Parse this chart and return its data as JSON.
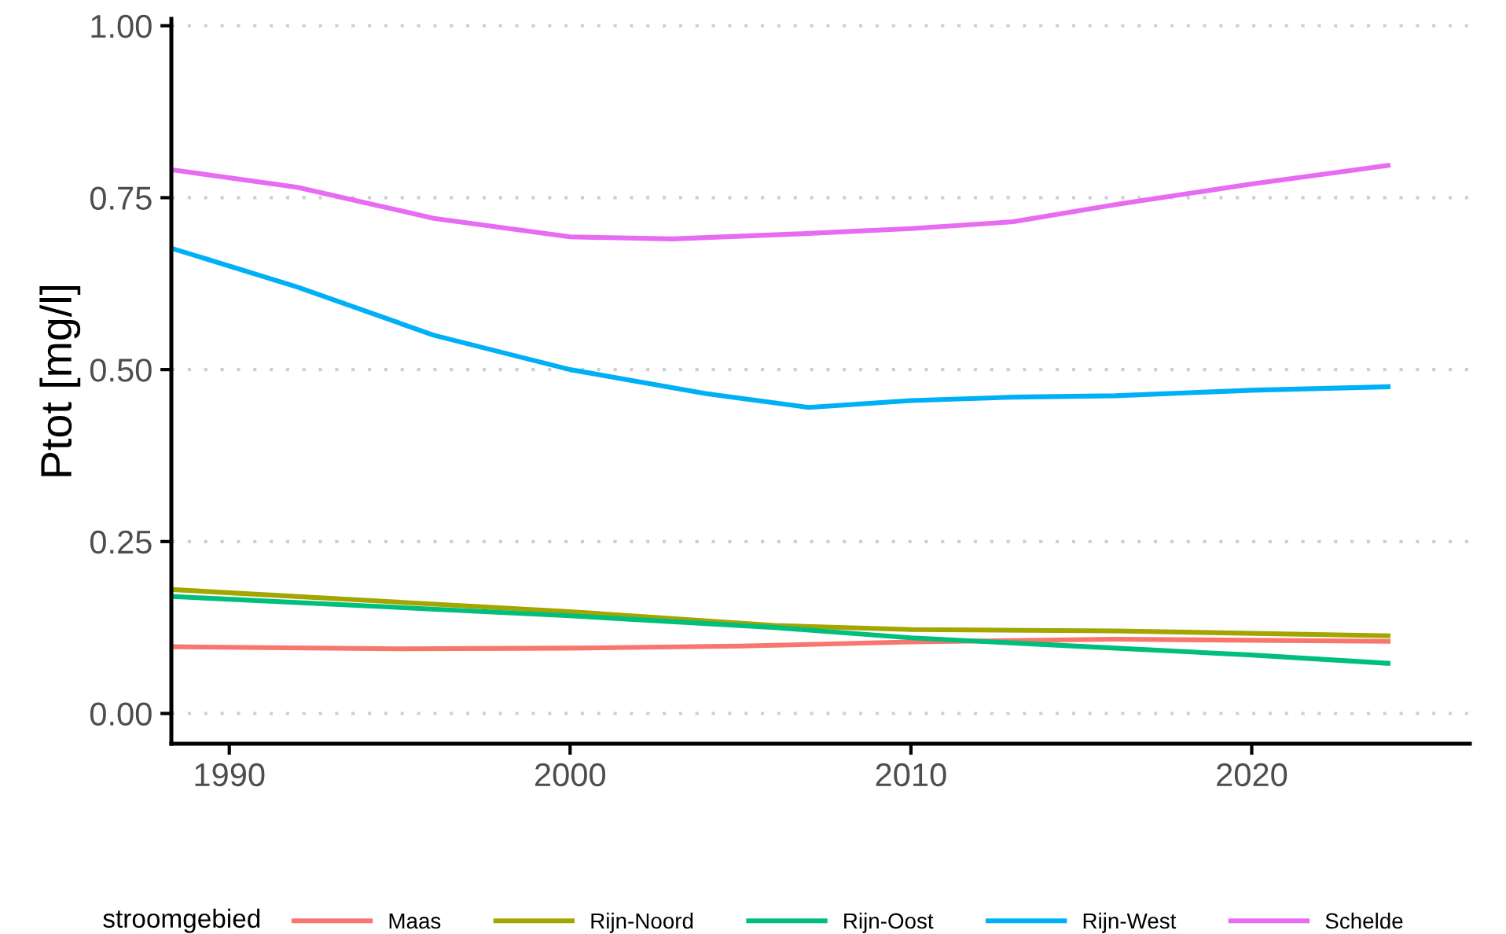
{
  "chart_data": {
    "type": "line",
    "ylabel": "Ptot [mg/l]",
    "legend_title": "stroomgebied",
    "legend": "bottom",
    "grid": "y",
    "line_style": "solid",
    "marker": "none",
    "xlim": [
      1988.3,
      2026.4
    ],
    "xticks": [
      1990,
      2000,
      2010,
      2020
    ],
    "ylim": [
      -0.044,
      1.01
    ],
    "yticks": [
      {
        "value": 0,
        "label": "0.00"
      },
      {
        "value": 0.25,
        "label": "0.25"
      },
      {
        "value": 0.5,
        "label": "0.50"
      },
      {
        "value": 0.75,
        "label": "0.75"
      },
      {
        "value": 1,
        "label": "1.00"
      }
    ],
    "series": [
      {
        "name": "Maas",
        "color": "#f8766d",
        "x": [
          1988.4,
          1995,
          2000,
          2005,
          2010,
          2016,
          2024
        ],
        "values": [
          0.097,
          0.094,
          0.095,
          0.098,
          0.104,
          0.108,
          0.105
        ]
      },
      {
        "name": "Rijn-Noord",
        "color": "#a3a500",
        "x": [
          1988.4,
          2000,
          2006,
          2010,
          2016,
          2024
        ],
        "values": [
          0.18,
          0.148,
          0.128,
          0.122,
          0.12,
          0.113
        ]
      },
      {
        "name": "Rijn-Oost",
        "color": "#00bf7d",
        "x": [
          1988.4,
          2000,
          2006,
          2010,
          2016,
          2020,
          2024
        ],
        "values": [
          0.17,
          0.142,
          0.125,
          0.11,
          0.095,
          0.085,
          0.073
        ]
      },
      {
        "name": "Rijn-West",
        "color": "#00b0f6",
        "x": [
          1988.4,
          1992,
          1996,
          2000,
          2004,
          2007,
          2010,
          2013,
          2016,
          2020,
          2024
        ],
        "values": [
          0.675,
          0.62,
          0.55,
          0.5,
          0.465,
          0.445,
          0.455,
          0.46,
          0.462,
          0.47,
          0.475
        ]
      },
      {
        "name": "Schelde",
        "color": "#e76bf3",
        "x": [
          1988.4,
          1992,
          1996,
          2000,
          2003,
          2007,
          2010,
          2013,
          2016,
          2020,
          2024
        ],
        "values": [
          0.79,
          0.765,
          0.72,
          0.693,
          0.69,
          0.698,
          0.705,
          0.715,
          0.74,
          0.77,
          0.797
        ]
      }
    ]
  }
}
